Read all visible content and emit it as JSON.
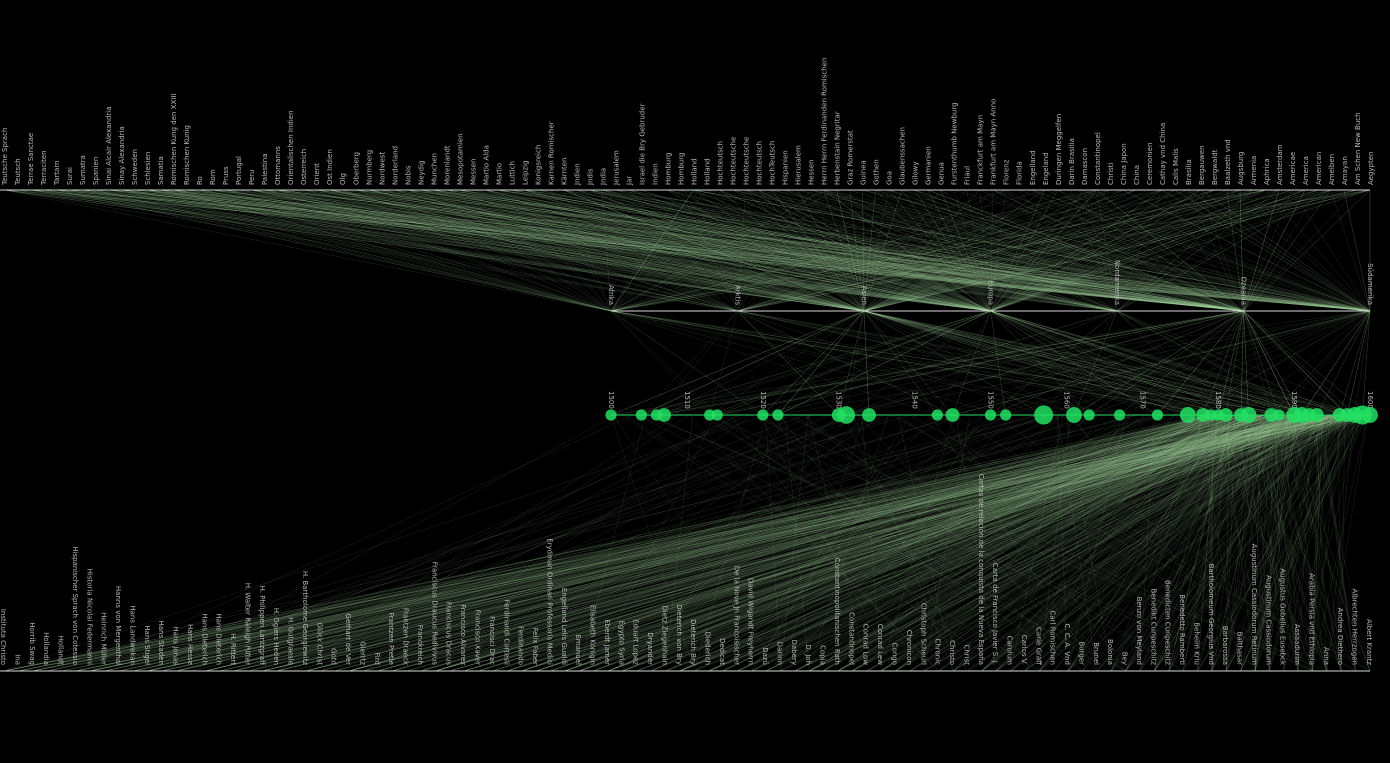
{
  "colors": {
    "background": "#000000",
    "link": "#a8d8a0",
    "node": "#22e063",
    "axis": "#d8d8d8",
    "text": "#b8b8b8"
  },
  "top_labels": [
    "Aegypten",
    "Am Schen New Buch",
    "Amayan",
    "Amelben",
    "American",
    "America",
    "Americae",
    "Amsterdam",
    "Aphrica",
    "Armenia",
    "Augsburg",
    "Baalzeth vnd",
    "Bergwaldt",
    "Bergauwen",
    "Brasilia",
    "Calis Malis",
    "Cathay vnd China",
    "Ceremonien",
    "China",
    "China Japon",
    "Christi",
    "Constantinopel",
    "Damascon",
    "Darin Brasilia",
    "Duringen Meggelfen",
    "Engeland",
    "Engelland",
    "Florida",
    "Florenz",
    "Frankfurt am Mayn Anno",
    "Franckfurt am Mayn",
    "Friaul",
    "Furstenthumb Newburg",
    "Genua",
    "Germanien",
    "Gilowy",
    "Glaubenssachen",
    "Goa",
    "Gothen",
    "Guinea",
    "Graz Romerstat",
    "Herbenstain Negritar",
    "Herrn Herrn Ferdinanden Romischen",
    "Hessen",
    "Hierusalem",
    "Hispanien",
    "HochTeutsch",
    "Hochteutsch",
    "Hochteutsche",
    "Hochteutsche",
    "Hochteutsch",
    "Holland",
    "Holland",
    "Homburg",
    "Homburg",
    "Indien",
    "Israel die Bry Gebruder",
    "Jar",
    "Jerusalem",
    "Jndia",
    "Jndis",
    "Jndien",
    "Kärnten",
    "Karnen Romischer",
    "Konigsreich",
    "Leipzig",
    "Luttich",
    "Martio",
    "Martio Alda",
    "Messen",
    "Mesopotamien",
    "Morenlandt",
    "Munchen",
    "Neydig",
    "Nobis",
    "Norderland",
    "Nordwest",
    "Nurmberg",
    "Oberberg",
    "Olg",
    "Ost Indien",
    "Orient",
    "Osterreich",
    "Orientalischen Indien",
    "Ottomanns",
    "Palestina",
    "Peru",
    "Portugal",
    "Pruss",
    "Rom",
    "Ro",
    "Romischen Kunig",
    "Romischen Kung den XXIII",
    "Samatia",
    "Schlesien",
    "Schweden",
    "Sinay Alexandria",
    "Sinai Alcair Alexandria",
    "Spanien",
    "Sumatra",
    "Surai",
    "Tartarn",
    "Terraciten",
    "Terrae Sanctae",
    "Teutsch",
    "Teutsche Sprach"
  ],
  "mid_labels": [
    "Afrika",
    "Arktis",
    "Asien",
    "Europa",
    "Nordamerika",
    "Ozeania",
    "Südamerika"
  ],
  "years": [
    "1500",
    "1510",
    "1520",
    "1530",
    "1540",
    "1550",
    "1560",
    "1570",
    "1580",
    "1590",
    "1600"
  ],
  "year_nodes": [
    {
      "year": 1500,
      "weight": 1
    },
    {
      "year": 1504,
      "weight": 1
    },
    {
      "year": 1506,
      "weight": 1
    },
    {
      "year": 1507,
      "weight": 2
    },
    {
      "year": 1513,
      "weight": 1
    },
    {
      "year": 1514,
      "weight": 1
    },
    {
      "year": 1520,
      "weight": 1
    },
    {
      "year": 1522,
      "weight": 1
    },
    {
      "year": 1530,
      "weight": 2
    },
    {
      "year": 1531,
      "weight": 4
    },
    {
      "year": 1534,
      "weight": 2
    },
    {
      "year": 1543,
      "weight": 1
    },
    {
      "year": 1545,
      "weight": 2
    },
    {
      "year": 1550,
      "weight": 1
    },
    {
      "year": 1552,
      "weight": 1
    },
    {
      "year": 1557,
      "weight": 5
    },
    {
      "year": 1561,
      "weight": 3
    },
    {
      "year": 1563,
      "weight": 1
    },
    {
      "year": 1567,
      "weight": 1
    },
    {
      "year": 1572,
      "weight": 1
    },
    {
      "year": 1576,
      "weight": 3
    },
    {
      "year": 1578,
      "weight": 2
    },
    {
      "year": 1579,
      "weight": 1
    },
    {
      "year": 1580,
      "weight": 1
    },
    {
      "year": 1581,
      "weight": 2
    },
    {
      "year": 1583,
      "weight": 2
    },
    {
      "year": 1584,
      "weight": 3
    },
    {
      "year": 1587,
      "weight": 2
    },
    {
      "year": 1588,
      "weight": 1
    },
    {
      "year": 1590,
      "weight": 3
    },
    {
      "year": 1591,
      "weight": 3
    },
    {
      "year": 1592,
      "weight": 2
    },
    {
      "year": 1593,
      "weight": 2
    },
    {
      "year": 1596,
      "weight": 2
    },
    {
      "year": 1597,
      "weight": 2
    },
    {
      "year": 1598,
      "weight": 3
    },
    {
      "year": 1599,
      "weight": 5
    },
    {
      "year": 1600,
      "weight": 3
    }
  ],
  "bottom_labels": [
    "Albert Krantz",
    "Albrechten Herrzogen",
    "Andrea Diethero",
    "Anna",
    "Arabia Persia vnd Ethiopia",
    "Assaadurim",
    "Augustus Gobelius Eusebck",
    "Augustinum Cassiodorum",
    "Augustinum Cassiodorum Retinum",
    "Balthasar",
    "Barbarossa",
    "Bartholomeum Georgius Vnd",
    "Beheim Kriu",
    "Benedetto Ramberti",
    "Benedicten Curipeschitz",
    "Benedikt Curipeschitz",
    "Benzo von Meyland",
    "Bey",
    "Bolonia",
    "Brunel",
    "Burger",
    "C. C. A. Vnd",
    "Carl Romischen",
    "Carle Graff",
    "Carlos V.",
    "Carolum",
    "Carta de Francisco Javier S. J.",
    "Cartas de relación de la conquista de la Nueva España",
    "Christ",
    "Christo",
    "Chronic",
    "Christoph Scheurl",
    "Chronicon",
    "Congo",
    "Conrad Lew",
    "Conrad Low",
    "Constantinopel",
    "Constantinopolitanischen Rath",
    "Copia",
    "D. Joh",
    "Dabery",
    "Darinn",
    "Dazü",
    "David Wigandt Freyherrn",
    "De la Nove Jn Francoisischer",
    "Dedicat",
    "Diederich",
    "Dieterich Bry",
    "Dieterich von Bry",
    "Dietz Ziegenhain",
    "Dryander",
    "Eduart Lopez",
    "Egypto Syria",
    "Eberdt Jamer",
    "Elisabeth Konigin",
    "Emanuel",
    "Engelland Lelis Gualdi",
    "Erydman Ordinari Professoris Medici",
    "Felix Faber",
    "Ferdinando",
    "Ferdinandi Cortesii",
    "Francisci Drac",
    "Francisco Xaver",
    "Francisco Alvarez",
    "Franciscus Dracus",
    "Franciscus Draucus Redivivus",
    "Franckreich",
    "Frantzen Draeck",
    "Frantzen Pretle",
    "Fird",
    "Gierrtz",
    "Gerhart de Ver",
    "Gotd",
    "Glück Christ",
    "H. Bartholome Georgiewitz",
    "H. Gutgraesle",
    "H. Ogiers Heden",
    "H. Philippen Lantzgraff",
    "H. Walter Raleigh Ritter",
    "H. Rittert",
    "Hans Dieterich",
    "Hans Dieterich",
    "Hans Hesse",
    "Hans Jonas",
    "Hans Staden",
    "Hans Stigel",
    "Hans Landwekan",
    "Hanns von Mergenthal",
    "Heinrich Müller",
    "Historia Nicolai Federmanni",
    "Hispanischer Sprach von Cotessio",
    "Hollandt",
    "Hollandia",
    "Horrib Swag",
    "Ina",
    "Instituta Christo"
  ],
  "axis_title_bottom": "Cartas de relación de la conquista de la Nueva España"
}
